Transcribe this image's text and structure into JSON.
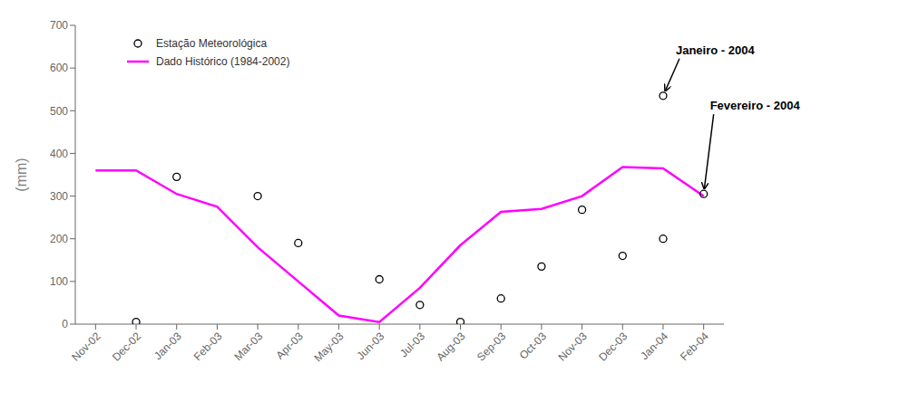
{
  "chart_data": {
    "type": "line",
    "categories": [
      "Nov-02",
      "Dec-02",
      "Jan-03",
      "Feb-03",
      "Mar-03",
      "Apr-03",
      "May-03",
      "Jun-03",
      "Jul-03",
      "Aug-03",
      "Sep-03",
      "Oct-03",
      "Nov-03",
      "Dec-03",
      "Jan-04",
      "Feb-04"
    ],
    "series": [
      {
        "name": "Estação Meteorológica",
        "type": "scatter",
        "marker": "circle",
        "color": "#000000",
        "x": [
          "Dec-02",
          "Jan-03",
          "Mar-03",
          "Apr-03",
          "Jun-03",
          "Jul-03",
          "Aug-03",
          "Sep-03",
          "Oct-03",
          "Nov-03",
          "Dec-03",
          "Jan-04",
          "Feb-04",
          "Jan-04"
        ],
        "values": [
          5,
          345,
          300,
          190,
          105,
          45,
          5,
          60,
          135,
          268,
          160,
          200,
          305,
          535
        ]
      },
      {
        "name": "Dado Histórico (1984-2002)",
        "type": "line",
        "color": "#FF00FF",
        "values": [
          360,
          360,
          305,
          275,
          180,
          100,
          20,
          5,
          85,
          185,
          263,
          270,
          300,
          368,
          365,
          300
        ]
      }
    ],
    "y_label": "(mm)",
    "ylim": [
      0,
      700
    ],
    "yticks": [
      0,
      100,
      200,
      300,
      400,
      500,
      600,
      700
    ],
    "annotations": [
      {
        "text": "Janeiro - 2004",
        "x": "Jan-04",
        "y": 535
      },
      {
        "text": "Fevereiro - 2004",
        "x": "Feb-04",
        "y": 305
      }
    ],
    "grid": false,
    "legend": "upper left"
  }
}
